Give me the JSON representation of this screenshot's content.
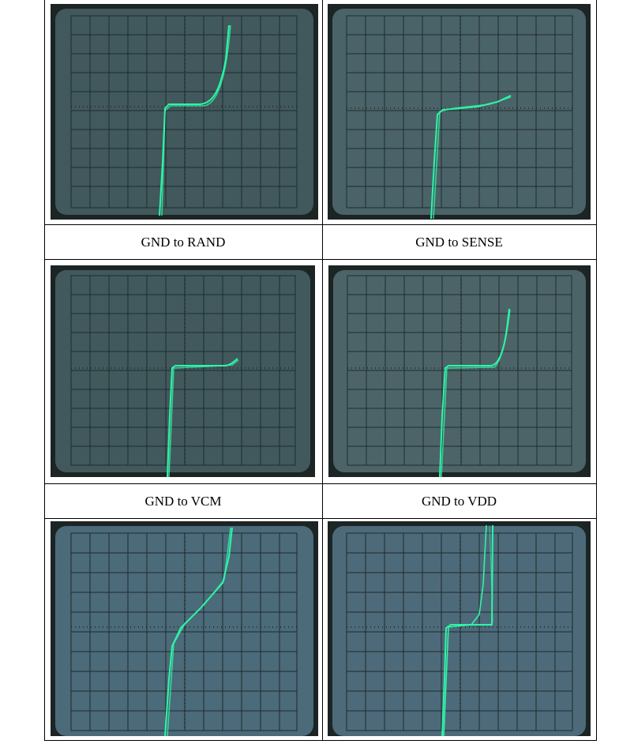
{
  "document": {
    "captions": [
      "GND to RAND",
      "GND to SENSE",
      "GND to VCM",
      "GND to VDD"
    ]
  },
  "photos": [
    {
      "name": "scope-photo-gnd-to-rand",
      "bg": "#41585c"
    },
    {
      "name": "scope-photo-gnd-to-sense",
      "bg": "#4a6368"
    },
    {
      "name": "scope-photo-gnd-to-vcm",
      "bg": "#41595d"
    },
    {
      "name": "scope-photo-gnd-to-vdd",
      "bg": "#4c6468"
    },
    {
      "name": "scope-photo-row3-left",
      "bg": "#4b6a7a"
    },
    {
      "name": "scope-photo-row3-right",
      "bg": "#4d6a7a"
    }
  ],
  "colors": {
    "trace": "#2ef5a6",
    "grid": "#1f2b2c",
    "frame": "#1c2424"
  }
}
